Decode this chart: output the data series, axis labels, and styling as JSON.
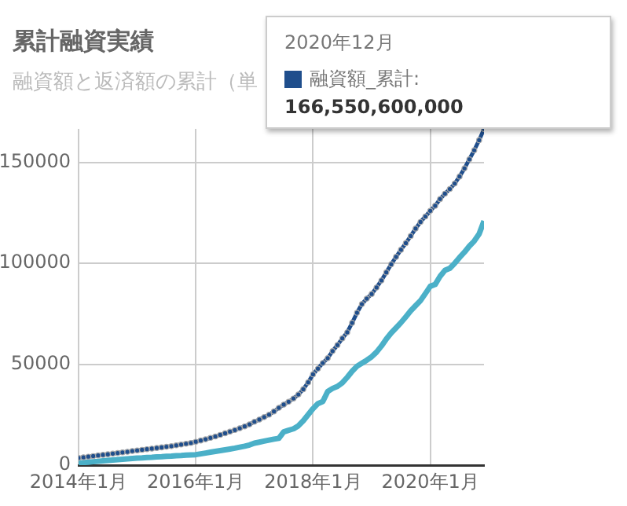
{
  "chart_data": {
    "type": "line",
    "title": "累計融資実績",
    "subtitle": "融資額と返済額の累計（単",
    "x": [
      "2014-01",
      "2014-02",
      "2014-03",
      "2014-04",
      "2014-05",
      "2014-06",
      "2014-07",
      "2014-08",
      "2014-09",
      "2014-10",
      "2014-11",
      "2014-12",
      "2015-01",
      "2015-02",
      "2015-03",
      "2015-04",
      "2015-05",
      "2015-06",
      "2015-07",
      "2015-08",
      "2015-09",
      "2015-10",
      "2015-11",
      "2015-12",
      "2016-01",
      "2016-02",
      "2016-03",
      "2016-04",
      "2016-05",
      "2016-06",
      "2016-07",
      "2016-08",
      "2016-09",
      "2016-10",
      "2016-11",
      "2016-12",
      "2017-01",
      "2017-02",
      "2017-03",
      "2017-04",
      "2017-05",
      "2017-06",
      "2017-07",
      "2017-08",
      "2017-09",
      "2017-10",
      "2017-11",
      "2017-12",
      "2018-01",
      "2018-02",
      "2018-03",
      "2018-04",
      "2018-05",
      "2018-06",
      "2018-07",
      "2018-08",
      "2018-09",
      "2018-10",
      "2018-11",
      "2018-12",
      "2019-01",
      "2019-02",
      "2019-03",
      "2019-04",
      "2019-05",
      "2019-06",
      "2019-07",
      "2019-08",
      "2019-09",
      "2019-10",
      "2019-11",
      "2019-12",
      "2020-01",
      "2020-02",
      "2020-03",
      "2020-04",
      "2020-05",
      "2020-06",
      "2020-07",
      "2020-08",
      "2020-09",
      "2020-10",
      "2020-11",
      "2020-12"
    ],
    "series": [
      {
        "name": "融資額_累計:",
        "color": "#1f4e8c",
        "marker": "circle",
        "values": [
          3600,
          3900,
          4200,
          4500,
          4800,
          5100,
          5400,
          5700,
          6000,
          6300,
          6600,
          7000,
          7300,
          7600,
          7900,
          8200,
          8500,
          8800,
          9100,
          9400,
          9800,
          10200,
          10600,
          11000,
          11600,
          12200,
          12800,
          13500,
          14200,
          15000,
          15800,
          16600,
          17400,
          18300,
          19200,
          20200,
          21500,
          22600,
          23800,
          25000,
          26600,
          28400,
          30000,
          31400,
          33000,
          35000,
          37600,
          41000,
          45000,
          47800,
          50600,
          53000,
          56500,
          59500,
          62800,
          65800,
          70500,
          75500,
          79800,
          82500,
          84800,
          88000,
          91500,
          95500,
          99500,
          103200,
          106700,
          110000,
          113500,
          117200,
          120500,
          123200,
          126000,
          128500,
          131800,
          134500,
          136800,
          139500,
          143000,
          147000,
          151500,
          156000,
          161000,
          166500
        ]
      },
      {
        "color": "#4bb0c8",
        "marker": "none",
        "values": [
          1000,
          1300,
          1500,
          1700,
          1900,
          2100,
          2300,
          2500,
          2700,
          2900,
          3100,
          3300,
          3500,
          3600,
          3800,
          3900,
          4100,
          4200,
          4400,
          4500,
          4700,
          4800,
          5000,
          5100,
          5200,
          5600,
          6000,
          6400,
          6800,
          7200,
          7600,
          8000,
          8400,
          8900,
          9400,
          10000,
          10900,
          11400,
          11900,
          12400,
          12900,
          13300,
          16500,
          17300,
          18000,
          19500,
          22000,
          25000,
          28000,
          30500,
          31500,
          36500,
          38000,
          39000,
          40800,
          43500,
          46500,
          49000,
          50500,
          52000,
          53700,
          56000,
          59000,
          62500,
          65500,
          68000,
          70600,
          73500,
          76500,
          79000,
          81500,
          85000,
          88600,
          89500,
          93500,
          96500,
          97500,
          100000,
          102900,
          105500,
          108500,
          111000,
          114500,
          121000
        ]
      }
    ],
    "xlim": [
      "2014-01",
      "2020-12"
    ],
    "xticks": [
      {
        "value": "2014-01",
        "label": "2014年1月"
      },
      {
        "value": "2016-01",
        "label": "2016年1月"
      },
      {
        "value": "2018-01",
        "label": "2018年1月"
      },
      {
        "value": "2020-01",
        "label": "2020年1月"
      }
    ],
    "ylim": [
      0,
      166600
    ],
    "yticks": [
      0,
      50000,
      100000,
      150000
    ],
    "grid": true,
    "legend": "top right",
    "annotations": [
      "2020年12月",
      "166,550,600,000"
    ]
  }
}
